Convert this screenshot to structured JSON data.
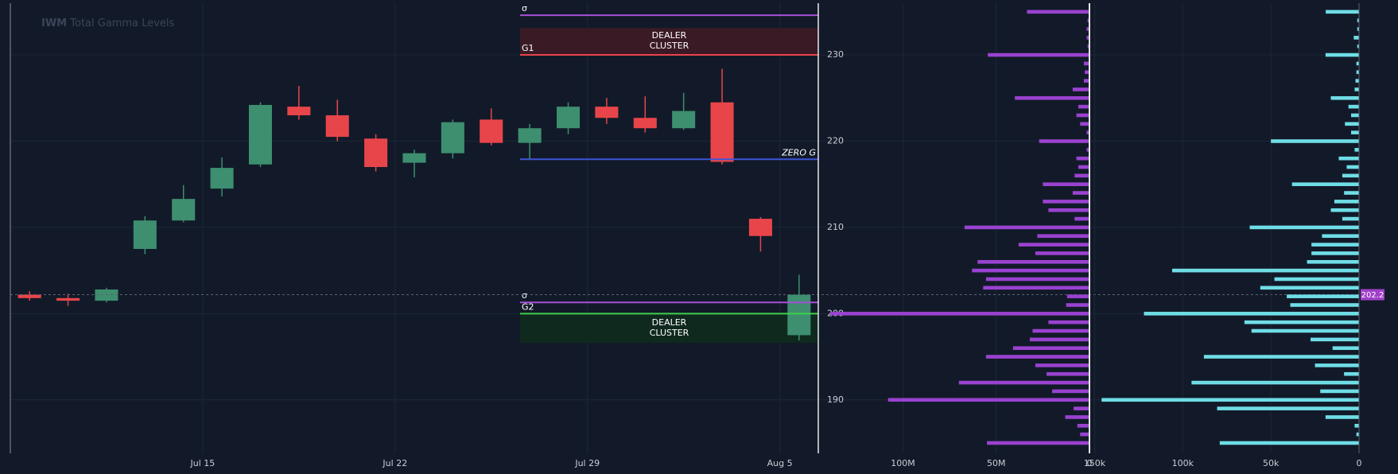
{
  "chart_data": [
    {
      "type": "candlestick",
      "title": {
        "ticker": "IWM",
        "text": "Total Gamma Levels"
      },
      "x": [
        "2024-07-08",
        "2024-07-09",
        "2024-07-10",
        "2024-07-11",
        "2024-07-12",
        "2024-07-15",
        "2024-07-16",
        "2024-07-17",
        "2024-07-18",
        "2024-07-19",
        "2024-07-22",
        "2024-07-23",
        "2024-07-24",
        "2024-07-25",
        "2024-07-26",
        "2024-07-29",
        "2024-07-30",
        "2024-07-31",
        "2024-08-01",
        "2024-08-02",
        "2024-08-05"
      ],
      "open": [
        202.2,
        201.8,
        201.5,
        207.5,
        210.8,
        214.5,
        217.3,
        224.0,
        223.0,
        220.3,
        217.5,
        218.6,
        222.5,
        219.8,
        221.5,
        224.0,
        222.7,
        221.5,
        224.5,
        211.0,
        197.5
      ],
      "high": [
        202.6,
        202.3,
        203.0,
        211.3,
        214.9,
        218.1,
        224.5,
        226.4,
        224.8,
        220.8,
        219.0,
        222.5,
        223.8,
        222.0,
        224.5,
        225.0,
        225.2,
        225.6,
        228.4,
        211.2,
        204.5
      ],
      "low": [
        201.5,
        200.9,
        201.3,
        206.9,
        210.6,
        213.6,
        217.0,
        222.5,
        220.0,
        216.5,
        215.8,
        218.0,
        219.5,
        217.8,
        220.8,
        222.0,
        221.0,
        221.3,
        217.3,
        207.2,
        196.9
      ],
      "close": [
        201.8,
        201.5,
        202.8,
        210.8,
        213.3,
        216.9,
        224.2,
        223.0,
        220.5,
        217.0,
        218.6,
        222.2,
        219.8,
        221.5,
        224.0,
        222.7,
        221.5,
        223.5,
        217.6,
        209.0,
        202.2
      ],
      "up_color": "#3d8f6f",
      "down_color": "#e8454a",
      "xlim": [
        "2024-07-08",
        "2024-08-06"
      ],
      "xticks": [
        {
          "value": "2024-07-15",
          "label": "Jul 15"
        },
        {
          "value": "2024-07-22",
          "label": "Jul 22"
        },
        {
          "value": "2024-07-29",
          "label": "Jul 29"
        },
        {
          "value": "2024-08-05",
          "label": "Aug 5"
        }
      ],
      "ylim": [
        183.8,
        236
      ],
      "yticks": [
        190,
        200,
        210,
        220,
        230
      ],
      "grid": true,
      "levels": [
        {
          "label": "σ",
          "value": 234.6,
          "color": "#a74fd8",
          "label_position": "start"
        },
        {
          "label": "G1",
          "value": 230,
          "color": "#e8454a",
          "label_position": "start"
        },
        {
          "label": "ZERO G",
          "value": 217.9,
          "color": "#3f55d6",
          "label_position": "end"
        },
        {
          "label": "σ",
          "value": 201.3,
          "color": "#a74fd8",
          "label_position": "start"
        },
        {
          "label": "G2",
          "value": 200,
          "color": "#3fcf4a",
          "label_position": "start"
        }
      ],
      "zones": [
        {
          "label": "DEALER CLUSTER",
          "from": 230,
          "to": 233.1,
          "color": "#3a1a25"
        },
        {
          "label": "DEALER CLUSTER",
          "from": 196.6,
          "to": 200,
          "color": "#10291f"
        }
      ],
      "last_price": 202.2,
      "last_price_color": "#a040c8"
    },
    {
      "type": "barh",
      "y": [
        235,
        234,
        233,
        232,
        231,
        230,
        229,
        228,
        227,
        226,
        225,
        224,
        223,
        222,
        221,
        220,
        219,
        218,
        217,
        216,
        215,
        214,
        213,
        212,
        211,
        210,
        209,
        208,
        207,
        206,
        205,
        204,
        203,
        202,
        201,
        200,
        199,
        198,
        197,
        196,
        195,
        194,
        193,
        192,
        191,
        190,
        189,
        188,
        187,
        186,
        185
      ],
      "values": [
        33500000,
        1000000,
        1500000,
        1500000,
        1000000,
        54500000,
        3000000,
        2500000,
        3000000,
        9000000,
        40000000,
        6000000,
        7000000,
        5000000,
        1500000,
        27000000,
        1500000,
        7000000,
        6000000,
        8000000,
        25000000,
        9000000,
        25000000,
        22000000,
        8000000,
        67000000,
        28000000,
        38000000,
        29000000,
        60000000,
        63000000,
        55500000,
        57000000,
        12000000,
        12500000,
        139000000,
        22000000,
        30500000,
        32000000,
        41000000,
        55500000,
        29000000,
        23000000,
        70000000,
        20000000,
        108000000,
        8500000,
        13000000,
        6500000,
        5000000,
        55000000
      ],
      "color": "#9a42d0",
      "xlim": [
        142000000,
        0
      ],
      "xticks": [
        {
          "value": 100000000,
          "label": "100M"
        },
        {
          "value": 50000000,
          "label": "50M"
        },
        0
      ],
      "ylim": [
        183.8,
        236
      ]
    },
    {
      "type": "barh",
      "y": [
        235,
        234,
        233,
        232,
        231,
        230,
        229,
        228,
        227,
        226,
        225,
        224,
        223,
        222,
        221,
        220,
        219,
        218,
        217,
        216,
        215,
        214,
        213,
        212,
        211,
        210,
        209,
        208,
        207,
        206,
        205,
        204,
        203,
        202,
        201,
        200,
        199,
        198,
        197,
        196,
        195,
        194,
        193,
        192,
        191,
        190,
        189,
        188,
        187,
        186,
        185
      ],
      "values": [
        18900,
        1000,
        1000,
        3000,
        1000,
        19000,
        1500,
        1500,
        2000,
        2500,
        16000,
        6000,
        4500,
        8000,
        4500,
        50000,
        2500,
        11500,
        7000,
        9500,
        38000,
        8500,
        14000,
        16000,
        9500,
        62000,
        21000,
        27000,
        27000,
        29500,
        106000,
        48000,
        56000,
        41000,
        39000,
        122000,
        65000,
        61000,
        27500,
        15000,
        88000,
        25000,
        8500,
        95000,
        22000,
        146000,
        80500,
        19000,
        2500,
        1500,
        79000
      ],
      "color": "#6fdde6",
      "xlim": [
        152000,
        0
      ],
      "xticks": [
        {
          "value": 150000,
          "label": "150k"
        },
        {
          "value": 100000,
          "label": "100k"
        },
        {
          "value": 50000,
          "label": "50k"
        },
        0
      ],
      "ylim": [
        183.8,
        236
      ]
    }
  ]
}
